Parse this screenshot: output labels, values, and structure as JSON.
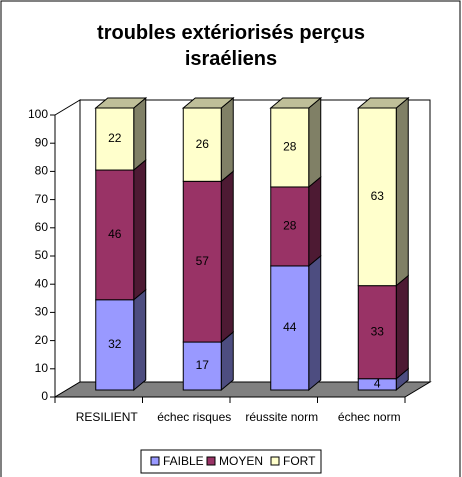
{
  "chart_data": {
    "type": "bar3d_stacked",
    "title": "troubles extériorisés perçus israéliens",
    "categories": [
      "RESILIENT",
      "échec risques",
      "réussite norm",
      "échec norm"
    ],
    "series": [
      {
        "name": "FAIBLE",
        "color": "#9999ff",
        "values": [
          32,
          17,
          44,
          4
        ]
      },
      {
        "name": "MOYEN",
        "color": "#993366",
        "values": [
          46,
          57,
          28,
          33
        ]
      },
      {
        "name": "FORT",
        "color": "#ffffcc",
        "values": [
          22,
          26,
          28,
          63
        ]
      }
    ],
    "ylim": [
      0,
      100
    ],
    "yticks": [
      0,
      10,
      20,
      30,
      40,
      50,
      60,
      70,
      80,
      90,
      100
    ],
    "grid": false,
    "legend": "bottom"
  }
}
